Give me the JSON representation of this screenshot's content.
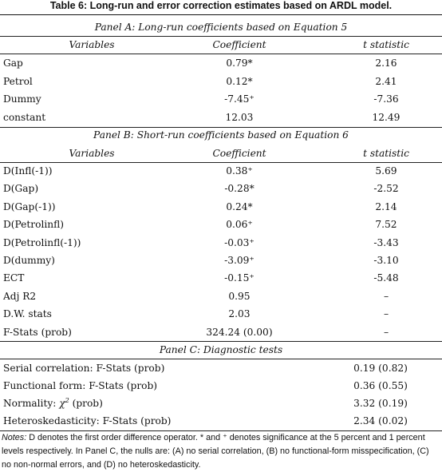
{
  "title": "Table 6: Long-run and error correction estimates based on ARDL model.",
  "panel_a": {
    "heading": "Panel A: Long-run coefficients based on Equation 5",
    "columns": [
      "Variables",
      "Coefficient",
      "t statistic"
    ],
    "rows": [
      [
        "Gap",
        "0.79*",
        "2.16"
      ],
      [
        "Petrol",
        "0.12*",
        "2.41"
      ],
      [
        "Dummy",
        "-7.45⁺",
        "-7.36"
      ],
      [
        "constant",
        "12.03",
        "12.49"
      ]
    ]
  },
  "panel_b": {
    "heading": "Panel B: Short-run coefficients based on Equation 6",
    "columns": [
      "Variables",
      "Coefficient",
      "t statistic"
    ],
    "rows": [
      [
        "D(Infl(-1))",
        "0.38⁺",
        "5.69"
      ],
      [
        "D(Gap)",
        "-0.28*",
        "-2.52"
      ],
      [
        "D(Gap(-1))",
        "0.24*",
        "2.14"
      ],
      [
        "D(Petrolinfl)",
        "0.06⁺",
        "7.52"
      ],
      [
        "D(Petrolinfl(-1))",
        "-0.03⁺",
        "-3.43"
      ],
      [
        "D(dummy)",
        "-3.09⁺",
        "-3.10"
      ],
      [
        "ECT",
        "-0.15⁺",
        "-5.48"
      ],
      [
        "Adj R2",
        "0.95",
        "–"
      ],
      [
        "D.W. stats",
        "2.03",
        "–"
      ],
      [
        "F-Stats (prob)",
        "324.24 (0.00)",
        "–"
      ]
    ]
  },
  "panel_c": {
    "heading": "Panel C: Diagnostic tests",
    "rows": [
      [
        "Serial correlation: F-Stats (prob)",
        "0.19 (0.82)"
      ],
      [
        "Functional  form: F-Stats (prob)",
        "0.36 (0.55)"
      ],
      [
        "Normality:",
        "(prob)",
        "3.32 (0.19)"
      ],
      [
        "Heteroskedasticity: F-Stats (prob)",
        "2.34 (0.02)"
      ]
    ],
    "chi_symbol": "χ",
    "chi_sup": "2"
  },
  "notes": {
    "label": "Notes:",
    "text": " D denotes the first order difference operator. * and ⁺ denotes significance at the 5 percent and 1 percent levels respectively. In Panel C, the nulls are: (A) no serial correlation, (B) no functional-form misspecification, (C) no non-normal errors, and (D) no heteroskedasticity."
  }
}
